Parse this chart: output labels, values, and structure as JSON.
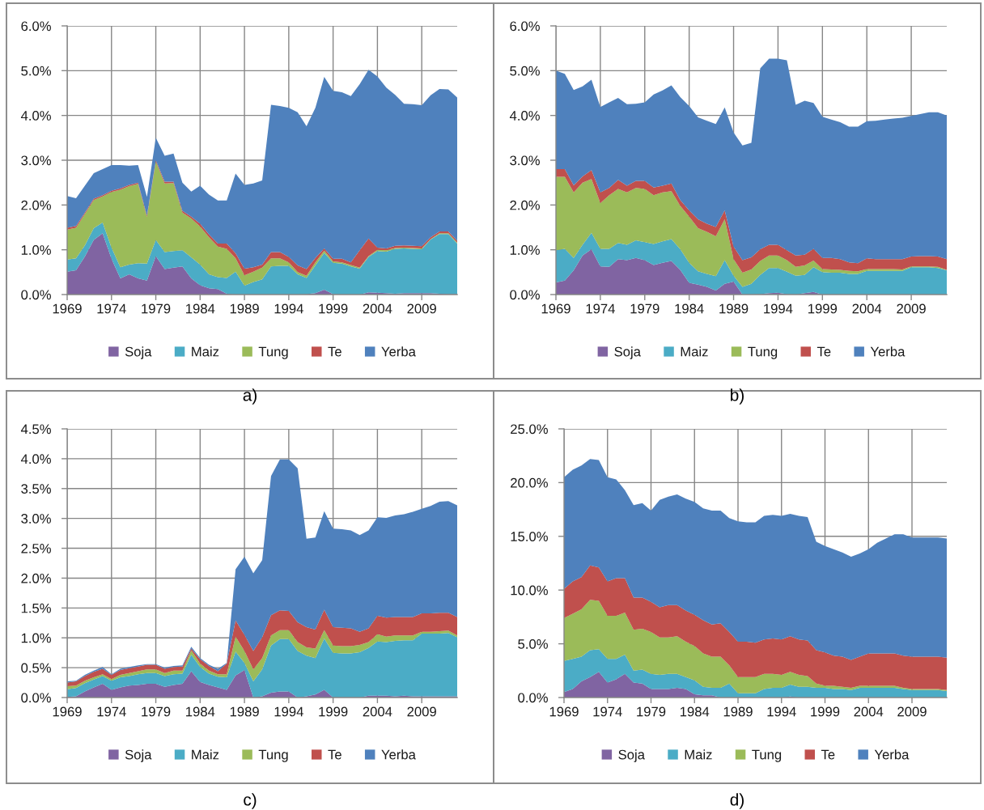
{
  "chart_data": [
    {
      "type": "area",
      "stacked": true,
      "grid": true,
      "legend": "bottom",
      "annotations": [
        "a)"
      ],
      "x": [
        1969,
        1970,
        1971,
        1972,
        1973,
        1974,
        1975,
        1976,
        1977,
        1978,
        1979,
        1980,
        1981,
        1982,
        1983,
        1984,
        1985,
        1986,
        1987,
        1988,
        1989,
        1990,
        1991,
        1992,
        1993,
        1994,
        1995,
        1996,
        1997,
        1998,
        1999,
        2000,
        2001,
        2002,
        2003,
        2004,
        2005,
        2006,
        2007,
        2008,
        2009,
        2010,
        2011,
        2012,
        2013
      ],
      "xlim": [
        1969,
        2013
      ],
      "xticks": [
        1969,
        1974,
        1979,
        1984,
        1989,
        1994,
        1999,
        2004,
        2009
      ],
      "ylim": [
        0,
        6
      ],
      "yticks": [
        {
          "value": 0,
          "label": "0.0%"
        },
        {
          "value": 1,
          "label": "1.0%"
        },
        {
          "value": 2,
          "label": "2.0%"
        },
        {
          "value": 3,
          "label": "3.0%"
        },
        {
          "value": 4,
          "label": "4.0%"
        },
        {
          "value": 5,
          "label": "5.0%"
        },
        {
          "value": 6,
          "label": "6.0%"
        }
      ],
      "series": [
        {
          "name": "Soja",
          "color": "#8064a2",
          "values": [
            0.51,
            0.54,
            0.85,
            1.22,
            1.37,
            0.8,
            0.36,
            0.45,
            0.36,
            0.31,
            0.86,
            0.57,
            0.6,
            0.63,
            0.36,
            0.21,
            0.14,
            0.12,
            0.02,
            0,
            0,
            0,
            0,
            0,
            0,
            0,
            0,
            0.01,
            0.03,
            0.11,
            0.01,
            0,
            0,
            0,
            0.05,
            0.04,
            0.03,
            0.02,
            0.03,
            0.03,
            0.03,
            0.03,
            0.02,
            0.01,
            0.01
          ]
        },
        {
          "name": "Maiz",
          "color": "#4bacc6",
          "values": [
            0.27,
            0.27,
            0.25,
            0.26,
            0.24,
            0.25,
            0.25,
            0.22,
            0.34,
            0.38,
            0.36,
            0.38,
            0.37,
            0.36,
            0.47,
            0.46,
            0.31,
            0.27,
            0.35,
            0.51,
            0.2,
            0.28,
            0.34,
            0.63,
            0.64,
            0.64,
            0.45,
            0.36,
            0.62,
            0.82,
            0.7,
            0.69,
            0.63,
            0.58,
            0.79,
            0.93,
            0.93,
            1.0,
            1.0,
            0.99,
            0.98,
            1.2,
            1.33,
            1.34,
            1.13
          ]
        },
        {
          "name": "Tung",
          "color": "#9bbb59",
          "values": [
            0.67,
            0.68,
            0.7,
            0.63,
            0.58,
            1.24,
            1.73,
            1.75,
            1.77,
            1.04,
            1.75,
            1.53,
            1.52,
            0.84,
            0.87,
            0.85,
            0.83,
            0.68,
            0.65,
            0.3,
            0.23,
            0.23,
            0.26,
            0.18,
            0.17,
            0.08,
            0.05,
            0.05,
            0.07,
            0.05,
            0.03,
            0.03,
            0.03,
            0.02,
            0.02,
            0.03,
            0.03,
            0.02,
            0.02,
            0.02,
            0.02,
            0.01,
            0.02,
            0.02,
            0.02
          ]
        },
        {
          "name": "Te",
          "color": "#c0504d",
          "values": [
            0.04,
            0.04,
            0.03,
            0.03,
            0.03,
            0.03,
            0.03,
            0.03,
            0.03,
            0.03,
            0.03,
            0.04,
            0.03,
            0.04,
            0.04,
            0.06,
            0.06,
            0.07,
            0.12,
            0.11,
            0.15,
            0.1,
            0.07,
            0.14,
            0.14,
            0.12,
            0.15,
            0.15,
            0.1,
            0.05,
            0.06,
            0.08,
            0.06,
            0.39,
            0.39,
            0.05,
            0.04,
            0.05,
            0.05,
            0.05,
            0.05,
            0.04,
            0.04,
            0.04,
            0.04
          ]
        },
        {
          "name": "Yerba",
          "color": "#4f81bd",
          "values": [
            0.71,
            0.62,
            0.6,
            0.57,
            0.58,
            0.57,
            0.52,
            0.43,
            0.39,
            0.42,
            0.5,
            0.58,
            0.63,
            0.63,
            0.56,
            0.85,
            0.89,
            0.96,
            0.96,
            1.78,
            1.87,
            1.87,
            1.88,
            3.29,
            3.26,
            3.33,
            3.42,
            3.19,
            3.35,
            3.83,
            3.75,
            3.72,
            3.71,
            3.71,
            3.77,
            3.82,
            3.59,
            3.37,
            3.16,
            3.16,
            3.15,
            3.17,
            3.18,
            3.17,
            3.2
          ]
        }
      ]
    },
    {
      "type": "area",
      "stacked": true,
      "grid": true,
      "legend": "bottom",
      "annotations": [
        "b)"
      ],
      "x": [
        1969,
        1970,
        1971,
        1972,
        1973,
        1974,
        1975,
        1976,
        1977,
        1978,
        1979,
        1980,
        1981,
        1982,
        1983,
        1984,
        1985,
        1986,
        1987,
        1988,
        1989,
        1990,
        1991,
        1992,
        1993,
        1994,
        1995,
        1996,
        1997,
        1998,
        1999,
        2000,
        2001,
        2002,
        2003,
        2004,
        2005,
        2006,
        2007,
        2008,
        2009,
        2010,
        2011,
        2012,
        2013
      ],
      "xlim": [
        1969,
        2013
      ],
      "xticks": [
        1969,
        1974,
        1979,
        1984,
        1989,
        1994,
        1999,
        2004,
        2009
      ],
      "ylim": [
        0,
        6
      ],
      "yticks": [
        {
          "value": 0,
          "label": "0.0%"
        },
        {
          "value": 1,
          "label": "1.0%"
        },
        {
          "value": 2,
          "label": "2.0%"
        },
        {
          "value": 3,
          "label": "3.0%"
        },
        {
          "value": 4,
          "label": "4.0%"
        },
        {
          "value": 5,
          "label": "5.0%"
        },
        {
          "value": 6,
          "label": "6.0%"
        }
      ],
      "series": [
        {
          "name": "Soja",
          "color": "#8064a2",
          "values": [
            0.27,
            0.31,
            0.54,
            0.87,
            1.01,
            0.63,
            0.62,
            0.79,
            0.77,
            0.82,
            0.77,
            0.66,
            0.71,
            0.75,
            0.55,
            0.26,
            0.22,
            0.17,
            0.09,
            0.24,
            0.29,
            0,
            0,
            0.01,
            0.03,
            0.04,
            0.01,
            0,
            0.03,
            0.06,
            0,
            0,
            0,
            0,
            0,
            0,
            0,
            0,
            0,
            0,
            0,
            0,
            0,
            0,
            0
          ]
        },
        {
          "name": "Maiz",
          "color": "#4bacc6",
          "values": [
            0.72,
            0.71,
            0.28,
            0.24,
            0.37,
            0.39,
            0.4,
            0.36,
            0.34,
            0.39,
            0.4,
            0.47,
            0.48,
            0.49,
            0.46,
            0.45,
            0.3,
            0.29,
            0.32,
            0.53,
            0.13,
            0.17,
            0.24,
            0.43,
            0.56,
            0.55,
            0.5,
            0.42,
            0.41,
            0.55,
            0.5,
            0.49,
            0.49,
            0.46,
            0.46,
            0.53,
            0.53,
            0.53,
            0.53,
            0.53,
            0.61,
            0.61,
            0.61,
            0.59,
            0.54
          ]
        },
        {
          "name": "Tung",
          "color": "#9bbb59",
          "values": [
            1.64,
            1.61,
            1.46,
            1.39,
            1.2,
            1.02,
            1.2,
            1.21,
            1.17,
            1.17,
            1.19,
            1.09,
            1.09,
            1.07,
            0.97,
            1.03,
            0.96,
            0.94,
            0.89,
            0.91,
            0.37,
            0.32,
            0.32,
            0.31,
            0.28,
            0.28,
            0.26,
            0.2,
            0.21,
            0.15,
            0.07,
            0.07,
            0.06,
            0.07,
            0.06,
            0.04,
            0.04,
            0.04,
            0.04,
            0.03,
            0.02,
            0.02,
            0.02,
            0.03,
            0.01
          ]
        },
        {
          "name": "Te",
          "color": "#c0504d",
          "values": [
            0.17,
            0.17,
            0.16,
            0.14,
            0.2,
            0.24,
            0.16,
            0.2,
            0.15,
            0.16,
            0.18,
            0.17,
            0.15,
            0.17,
            0.13,
            0.14,
            0.2,
            0.18,
            0.21,
            0.2,
            0.28,
            0.28,
            0.27,
            0.26,
            0.24,
            0.24,
            0.22,
            0.25,
            0.24,
            0.26,
            0.25,
            0.26,
            0.24,
            0.19,
            0.18,
            0.24,
            0.22,
            0.22,
            0.22,
            0.23,
            0.22,
            0.23,
            0.23,
            0.23,
            0.24
          ]
        },
        {
          "name": "Yerba",
          "color": "#4f81bd",
          "values": [
            2.2,
            2.13,
            2.13,
            2.01,
            2.02,
            1.91,
            1.91,
            1.83,
            1.82,
            1.72,
            1.75,
            2.08,
            2.13,
            2.19,
            2.3,
            2.33,
            2.28,
            2.3,
            2.3,
            2.3,
            2.55,
            2.56,
            2.56,
            4.04,
            4.16,
            4.16,
            4.24,
            3.37,
            3.44,
            3.26,
            3.15,
            3.09,
            3.06,
            3.03,
            3.05,
            3.06,
            3.09,
            3.12,
            3.14,
            3.16,
            3.14,
            3.17,
            3.21,
            3.22,
            3.21
          ]
        }
      ]
    },
    {
      "type": "area",
      "stacked": true,
      "grid": true,
      "legend": "bottom",
      "annotations": [
        "c)"
      ],
      "x": [
        1969,
        1970,
        1971,
        1972,
        1973,
        1974,
        1975,
        1976,
        1977,
        1978,
        1979,
        1980,
        1981,
        1982,
        1983,
        1984,
        1985,
        1986,
        1987,
        1988,
        1989,
        1990,
        1991,
        1992,
        1993,
        1994,
        1995,
        1996,
        1997,
        1998,
        1999,
        2000,
        2001,
        2002,
        2003,
        2004,
        2005,
        2006,
        2007,
        2008,
        2009,
        2010,
        2011,
        2012,
        2013
      ],
      "xlim": [
        1969,
        2013
      ],
      "xticks": [
        1969,
        1974,
        1979,
        1984,
        1989,
        1994,
        1999,
        2004,
        2009
      ],
      "ylim": [
        0,
        4.5
      ],
      "yticks": [
        {
          "value": 0,
          "label": "0.0%"
        },
        {
          "value": 0.5,
          "label": "0.5%"
        },
        {
          "value": 1,
          "label": "1.0%"
        },
        {
          "value": 1.5,
          "label": "1.5%"
        },
        {
          "value": 2,
          "label": "2.0%"
        },
        {
          "value": 2.5,
          "label": "2.5%"
        },
        {
          "value": 3,
          "label": "3.0%"
        },
        {
          "value": 3.5,
          "label": "3.5%"
        },
        {
          "value": 4,
          "label": "4.0%"
        },
        {
          "value": 4.5,
          "label": "4.5%"
        }
      ],
      "series": [
        {
          "name": "Soja",
          "color": "#8064a2",
          "values": [
            0.01,
            0.02,
            0.1,
            0.17,
            0.23,
            0.13,
            0.17,
            0.2,
            0.21,
            0.23,
            0.23,
            0.18,
            0.21,
            0.23,
            0.44,
            0.26,
            0.21,
            0.17,
            0.13,
            0.37,
            0.46,
            0,
            0.02,
            0.08,
            0.1,
            0.1,
            0,
            0.02,
            0.05,
            0.13,
            0,
            0,
            0,
            0,
            0.03,
            0.03,
            0.03,
            0.02,
            0.03,
            0.02,
            0.02,
            0.02,
            0.02,
            0.02,
            0.02
          ]
        },
        {
          "name": "Maiz",
          "color": "#4bacc6",
          "values": [
            0.13,
            0.14,
            0.14,
            0.13,
            0.13,
            0.15,
            0.17,
            0.16,
            0.18,
            0.18,
            0.18,
            0.18,
            0.18,
            0.17,
            0.28,
            0.25,
            0.19,
            0.18,
            0.21,
            0.4,
            0.12,
            0.27,
            0.45,
            0.79,
            0.88,
            0.88,
            0.78,
            0.68,
            0.61,
            0.86,
            0.75,
            0.74,
            0.74,
            0.76,
            0.8,
            0.91,
            0.9,
            0.93,
            0.93,
            0.94,
            1.05,
            1.05,
            1.05,
            1.06,
            0.99
          ]
        },
        {
          "name": "Tung",
          "color": "#9bbb59",
          "values": [
            0.05,
            0.04,
            0.04,
            0.04,
            0.03,
            0.03,
            0.04,
            0.05,
            0.05,
            0.06,
            0.06,
            0.05,
            0.06,
            0.05,
            0.07,
            0.06,
            0.05,
            0.04,
            0.05,
            0.25,
            0.2,
            0.2,
            0.19,
            0.17,
            0.15,
            0.15,
            0.15,
            0.14,
            0.16,
            0.14,
            0.12,
            0.12,
            0.12,
            0.12,
            0.1,
            0.12,
            0.09,
            0.09,
            0.08,
            0.08,
            0.03,
            0.03,
            0.04,
            0.04,
            0.03
          ]
        },
        {
          "name": "Te",
          "color": "#c0504d",
          "values": [
            0.06,
            0.07,
            0.08,
            0.09,
            0.09,
            0.07,
            0.08,
            0.08,
            0.08,
            0.08,
            0.08,
            0.07,
            0.06,
            0.07,
            0.03,
            0.07,
            0.08,
            0.05,
            0.18,
            0.27,
            0.27,
            0.31,
            0.35,
            0.34,
            0.33,
            0.32,
            0.33,
            0.34,
            0.32,
            0.34,
            0.31,
            0.31,
            0.3,
            0.22,
            0.23,
            0.31,
            0.32,
            0.31,
            0.31,
            0.31,
            0.31,
            0.31,
            0.31,
            0.3,
            0.31
          ]
        },
        {
          "name": "Yerba",
          "color": "#4f81bd",
          "values": [
            0.02,
            0.01,
            0.02,
            0.02,
            0.03,
            0.01,
            0.02,
            0.02,
            0.02,
            0.01,
            0.01,
            0.02,
            0.02,
            0.02,
            0.03,
            0.02,
            0.02,
            0.04,
            0.01,
            0.86,
            1.31,
            1.3,
            1.29,
            2.33,
            2.53,
            2.54,
            2.58,
            1.48,
            1.54,
            1.65,
            1.65,
            1.65,
            1.64,
            1.62,
            1.64,
            1.65,
            1.67,
            1.7,
            1.72,
            1.76,
            1.75,
            1.8,
            1.86,
            1.87,
            1.87
          ]
        }
      ]
    },
    {
      "type": "area",
      "stacked": true,
      "grid": true,
      "legend": "bottom",
      "annotations": [
        "d)"
      ],
      "x": [
        1969,
        1970,
        1971,
        1972,
        1973,
        1974,
        1975,
        1976,
        1977,
        1978,
        1979,
        1980,
        1981,
        1982,
        1983,
        1984,
        1985,
        1986,
        1987,
        1988,
        1989,
        1990,
        1991,
        1992,
        1993,
        1994,
        1995,
        1996,
        1997,
        1998,
        1999,
        2000,
        2001,
        2002,
        2003,
        2004,
        2005,
        2006,
        2007,
        2008,
        2009,
        2010,
        2011,
        2012,
        2013
      ],
      "xlim": [
        1969,
        2013
      ],
      "xticks": [
        1969,
        1974,
        1979,
        1984,
        1989,
        1994,
        1999,
        2004,
        2009
      ],
      "ylim": [
        0,
        25
      ],
      "yticks": [
        {
          "value": 0,
          "label": "0.0%"
        },
        {
          "value": 5,
          "label": "5.0%"
        },
        {
          "value": 10,
          "label": "10.0%"
        },
        {
          "value": 15,
          "label": "15.0%"
        },
        {
          "value": 20,
          "label": "20.0%"
        },
        {
          "value": 25,
          "label": "25.0%"
        }
      ],
      "series": [
        {
          "name": "Soja",
          "color": "#8064a2",
          "values": [
            0.5,
            0.8,
            1.5,
            1.9,
            2.4,
            1.4,
            1.7,
            2.2,
            1.4,
            1.3,
            0.8,
            0.8,
            0.8,
            0.9,
            0.8,
            0.3,
            0.2,
            0.2,
            0,
            0,
            0,
            0,
            0,
            0,
            0,
            0,
            0.1,
            0,
            0,
            0,
            0,
            0,
            0,
            0,
            0,
            0,
            0,
            0,
            0,
            0,
            0,
            0,
            0,
            0,
            0
          ]
        },
        {
          "name": "Maiz",
          "color": "#4bacc6",
          "values": [
            2.9,
            2.8,
            2.3,
            2.5,
            2.1,
            2.2,
            1.9,
            1.8,
            1.1,
            1.3,
            1.4,
            1.3,
            1.4,
            1.3,
            1.1,
            1.3,
            0.8,
            0.7,
            0.9,
            1.3,
            0.4,
            0.4,
            0.4,
            0.8,
            0.9,
            0.9,
            1.1,
            1.0,
            1.0,
            0.9,
            0.9,
            0.8,
            0.8,
            0.7,
            0.9,
            0.9,
            0.9,
            0.9,
            0.9,
            0.8,
            0.7,
            0.7,
            0.7,
            0.7,
            0.6
          ]
        },
        {
          "name": "Tung",
          "color": "#9bbb59",
          "values": [
            4.0,
            4.2,
            4.4,
            4.7,
            4.5,
            4.0,
            4.0,
            3.9,
            3.8,
            3.8,
            3.9,
            3.5,
            3.4,
            3.5,
            3.3,
            3.2,
            3.1,
            2.9,
            2.9,
            1.7,
            1.5,
            1.5,
            1.5,
            1.4,
            1.3,
            1.2,
            1.2,
            1.1,
            1.0,
            0.4,
            0.2,
            0.3,
            0.2,
            0.2,
            0.2,
            0.2,
            0.2,
            0.2,
            0.2,
            0.1,
            0.1,
            0.1,
            0.1,
            0.1,
            0.1
          ]
        },
        {
          "name": "Te",
          "color": "#c0504d",
          "values": [
            2.7,
            3.0,
            3.0,
            3.2,
            3.1,
            3.2,
            3.5,
            3.2,
            3.0,
            2.9,
            2.8,
            2.8,
            3.0,
            2.9,
            2.9,
            2.9,
            3.1,
            3.0,
            3.1,
            3.1,
            3.3,
            3.3,
            3.2,
            3.2,
            3.3,
            3.3,
            3.3,
            3.3,
            3.3,
            3.1,
            3.1,
            2.8,
            2.8,
            2.6,
            2.7,
            3.0,
            3.0,
            3.0,
            3.0,
            3.0,
            3.0,
            3.0,
            3.0,
            3.0,
            3.0
          ]
        },
        {
          "name": "Yerba",
          "color": "#4f81bd",
          "values": [
            10.4,
            10.4,
            10.4,
            9.9,
            10.0,
            9.7,
            9.2,
            8.2,
            8.6,
            8.8,
            8.5,
            10.0,
            10.1,
            10.3,
            10.4,
            10.5,
            10.4,
            10.6,
            10.5,
            10.6,
            11.2,
            11.1,
            11.2,
            11.5,
            11.5,
            11.5,
            11.4,
            11.5,
            11.5,
            10.1,
            9.9,
            9.9,
            9.7,
            9.6,
            9.6,
            9.7,
            10.3,
            10.7,
            11.1,
            11.3,
            11.1,
            11.1,
            11.1,
            11.1,
            11.1
          ]
        }
      ]
    }
  ]
}
